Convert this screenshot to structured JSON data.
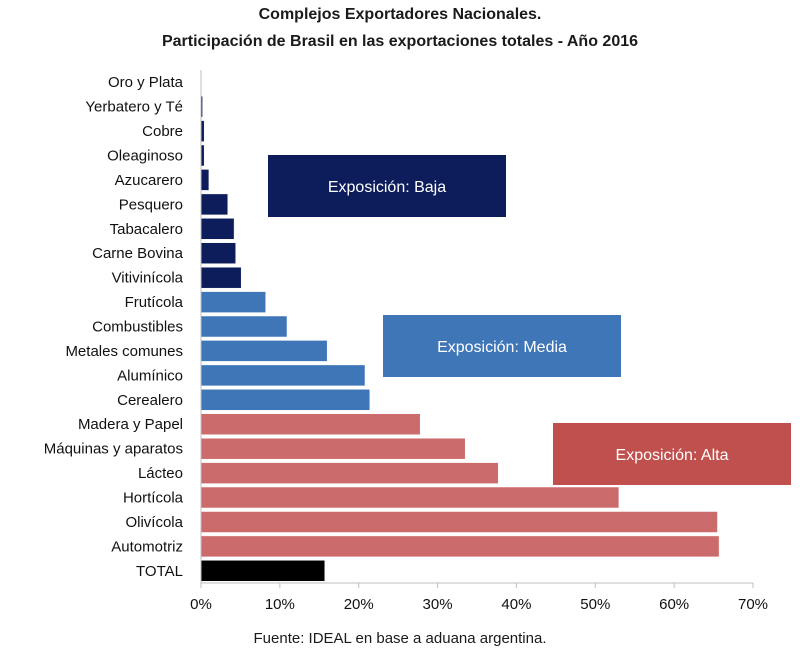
{
  "title": "Complejos Exportadores Nacionales.",
  "subtitle": "Participación de Brasil en las exportaciones totales - Año 2016",
  "source": "Fuente: IDEAL en base a aduana argentina.",
  "chart_data": {
    "type": "bar",
    "orientation": "horizontal",
    "categories": [
      "Oro y Plata",
      "Yerbatero y Té",
      "Cobre",
      "Oleaginoso",
      "Azucarero",
      "Pesquero",
      "Tabacalero",
      "Carne Bovina",
      "Vitivinícola",
      "Frutícola",
      "Combustibles",
      "Metales comunes",
      "Alumínico",
      "Cerealero",
      "Madera y Papel",
      "Máquinas y aparatos",
      "Lácteo",
      "Hortícola",
      "Olivícola",
      "Automotriz",
      "TOTAL"
    ],
    "values": [
      0.0,
      0.2,
      0.4,
      0.4,
      1.0,
      3.4,
      4.2,
      4.4,
      5.1,
      8.2,
      10.9,
      16.0,
      20.8,
      21.4,
      27.8,
      33.5,
      37.7,
      53.0,
      65.5,
      65.7,
      15.7
    ],
    "groups": [
      "baja",
      "baja",
      "baja",
      "baja",
      "baja",
      "baja",
      "baja",
      "baja",
      "baja",
      "media",
      "media",
      "media",
      "media",
      "media",
      "alta",
      "alta",
      "alta",
      "alta",
      "alta",
      "alta",
      "total"
    ],
    "group_colors": {
      "baja": "#0d1d5c",
      "media": "#3f76b7",
      "alta": "#cc6b6b",
      "total": "#000000"
    },
    "xlim": [
      0,
      70
    ],
    "xticks": [
      "0%",
      "10%",
      "20%",
      "30%",
      "40%",
      "50%",
      "60%",
      "70%"
    ],
    "xtick_values": [
      0,
      10,
      20,
      30,
      40,
      50,
      60,
      70
    ],
    "grid": false,
    "annotations": [
      {
        "text": "Exposición: Baja",
        "color": "#0d1d5c"
      },
      {
        "text": "Exposición: Media",
        "color": "#3f76b7"
      },
      {
        "text": "Exposición: Alta",
        "color": "#c0504d"
      }
    ]
  }
}
